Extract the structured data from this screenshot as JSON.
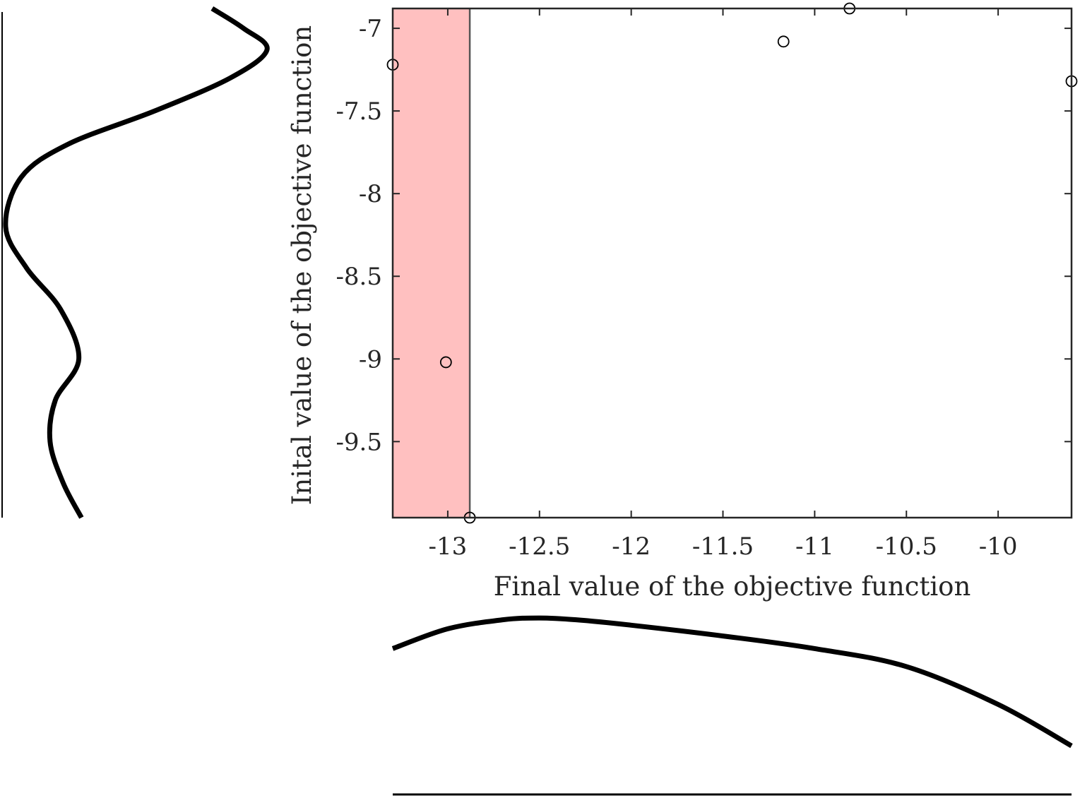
{
  "chart_data": {
    "type": "scatter",
    "xlabel": "Final value of the objective function",
    "ylabel": "Inital value of the objective function",
    "xlim": [
      -13.3,
      -9.6
    ],
    "ylim": [
      -9.96,
      -6.88
    ],
    "xticks": [
      -13,
      -12.5,
      -12,
      -11.5,
      -11,
      -10.5,
      -10
    ],
    "yticks": [
      -7,
      -7.5,
      -8,
      -8.5,
      -9,
      -9.5
    ],
    "xtick_labels": [
      "-13",
      "-12.5",
      "-12",
      "-11.5",
      "-11",
      "-10.5",
      "-10"
    ],
    "ytick_labels": [
      "-7",
      "-7.5",
      "-8",
      "-8.5",
      "-9",
      "-9.5"
    ],
    "grid": false,
    "highlight_region": {
      "x": [
        -13.3,
        -12.88
      ],
      "color": "#ffc0c0"
    },
    "threshold_line_x": -12.88,
    "points": [
      {
        "x": -13.3,
        "y": -7.22
      },
      {
        "x": -13.01,
        "y": -9.02
      },
      {
        "x": -12.88,
        "y": -9.96
      },
      {
        "x": -11.17,
        "y": -7.08
      },
      {
        "x": -10.81,
        "y": -6.88
      },
      {
        "x": -9.6,
        "y": -7.32
      }
    ],
    "marginal_x_density": {
      "x": [
        -13.3,
        -13.0,
        -12.7,
        -12.5,
        -12.3,
        -12.0,
        -11.5,
        -11.0,
        -10.5,
        -10.0,
        -9.6
      ],
      "density": [
        0.81,
        0.92,
        0.97,
        0.98,
        0.97,
        0.94,
        0.88,
        0.81,
        0.71,
        0.5,
        0.27
      ]
    },
    "marginal_y_density": {
      "y": [
        -6.88,
        -7.0,
        -7.13,
        -7.3,
        -7.5,
        -7.7,
        -7.9,
        -8.2,
        -8.45,
        -8.7,
        -9.0,
        -9.25,
        -9.5,
        -9.75,
        -9.96
      ],
      "density": [
        0.79,
        0.91,
        1.0,
        0.86,
        0.57,
        0.24,
        0.06,
        0.0,
        0.08,
        0.21,
        0.28,
        0.19,
        0.17,
        0.22,
        0.29
      ]
    },
    "colors": {
      "axis": "#262626",
      "marker": "#000000",
      "highlight": "#ffc0c0",
      "threshold_line": "#555555",
      "density_curve": "#000000"
    }
  }
}
